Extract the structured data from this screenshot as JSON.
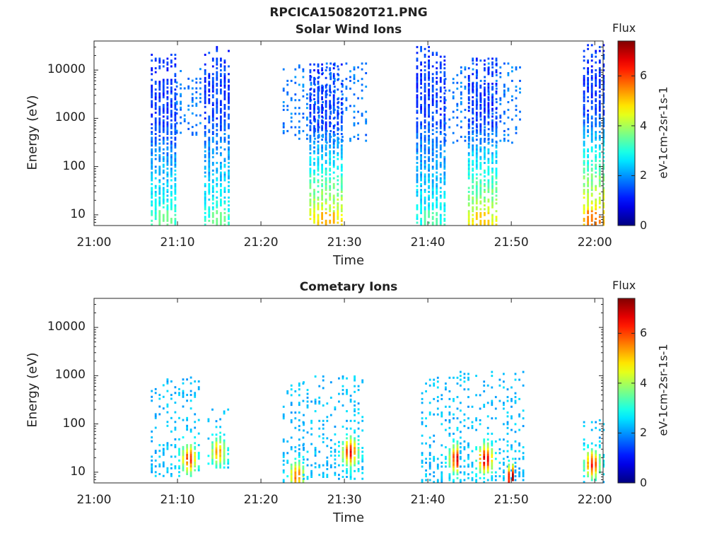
{
  "figure": {
    "title_line1": "RPCICA150820T21.PNG",
    "title_line2": "Solar Wind Ions"
  },
  "chart_data": [
    {
      "type": "heatmap",
      "title": "Solar Wind Ions",
      "xlabel": "Time",
      "ylabel": "Energy (eV)",
      "xlim": [
        "21:00",
        "22:01"
      ],
      "ylim": [
        6,
        40000
      ],
      "yscale": "log",
      "x_ticks": [
        "21:00",
        "21:10",
        "21:20",
        "21:30",
        "21:40",
        "21:50",
        "22:00"
      ],
      "y_ticks": [
        "10",
        "100",
        "1000",
        "10000"
      ],
      "colorbar": {
        "title": "Flux",
        "label": "eV-1cm-2sr-1s-1",
        "range": [
          0,
          7.4
        ],
        "ticks": [
          "0",
          "2",
          "4",
          "6"
        ],
        "colormap": "jet"
      },
      "bursts": [
        {
          "start_min": 6.8,
          "end_min": 9.8,
          "emax": 20000,
          "emin": 6,
          "peak_flux": 3.2,
          "core_flux": 1.3
        },
        {
          "start_min": 9.8,
          "end_min": 12.8,
          "emax": 11000,
          "emin": 400,
          "peak_flux": 2.0,
          "core_flux": 1.8,
          "sparse": true
        },
        {
          "start_min": 13.2,
          "end_min": 16.2,
          "emax": 30000,
          "emin": 6,
          "peak_flux": 3.2,
          "core_flux": 1.3
        },
        {
          "start_min": 22.6,
          "end_min": 32.5,
          "emax": 14000,
          "emin": 300,
          "peak_flux": 2.0,
          "core_flux": 1.8,
          "sparse": true
        },
        {
          "start_min": 25.8,
          "end_min": 29.8,
          "emax": 13000,
          "emin": 6,
          "peak_flux": 4.8,
          "core_flux": 1.3
        },
        {
          "start_min": 38.6,
          "end_min": 42.0,
          "emax": 30000,
          "emin": 6,
          "peak_flux": 3.0,
          "core_flux": 1.3
        },
        {
          "start_min": 42.0,
          "end_min": 51.0,
          "emax": 14000,
          "emin": 300,
          "peak_flux": 2.0,
          "core_flux": 1.8,
          "sparse": true
        },
        {
          "start_min": 44.8,
          "end_min": 48.2,
          "emax": 18000,
          "emin": 6,
          "peak_flux": 4.6,
          "core_flux": 1.3
        },
        {
          "start_min": 58.6,
          "end_min": 61.0,
          "emax": 38000,
          "emin": 6,
          "peak_flux": 5.2,
          "core_flux": 1.3
        }
      ]
    },
    {
      "type": "heatmap",
      "title": "Cometary Ions",
      "xlabel": "Time",
      "ylabel": "Energy (eV)",
      "xlim": [
        "21:00",
        "22:01"
      ],
      "ylim": [
        6,
        40000
      ],
      "yscale": "log",
      "x_ticks": [
        "21:00",
        "21:10",
        "21:20",
        "21:30",
        "21:40",
        "21:50",
        "22:00"
      ],
      "y_ticks": [
        "10",
        "100",
        "1000",
        "10000"
      ],
      "colorbar": {
        "title": "Flux",
        "label": "eV-1cm-2sr-1s-1",
        "range": [
          0,
          7.4
        ],
        "ticks": [
          "0",
          "2",
          "4",
          "6"
        ],
        "colormap": "jet"
      },
      "bursts": [
        {
          "start_min": 6.8,
          "end_min": 12.8,
          "emax": 900,
          "emin": 8,
          "peak_flux": 6.2,
          "peak_min": 11.3,
          "peak_e": 18
        },
        {
          "start_min": 13.6,
          "end_min": 16.2,
          "emax": 200,
          "emin": 12,
          "peak_flux": 5.4,
          "peak_min": 14.8,
          "peak_e": 25
        },
        {
          "start_min": 22.6,
          "end_min": 25.0,
          "emax": 700,
          "emin": 6,
          "peak_flux": 5.8,
          "peak_min": 24.2,
          "peak_e": 8
        },
        {
          "start_min": 25.0,
          "end_min": 32.5,
          "emax": 1000,
          "emin": 7,
          "peak_flux": 6.6,
          "peak_min": 30.6,
          "peak_e": 25
        },
        {
          "start_min": 39.2,
          "end_min": 43.8,
          "emax": 900,
          "emin": 6,
          "peak_flux": 6.8,
          "peak_min": 43.4,
          "peak_e": 18
        },
        {
          "start_min": 43.8,
          "end_min": 51.5,
          "emax": 1200,
          "emin": 6,
          "peak_flux": 7.0,
          "peak_min": 46.8,
          "peak_e": 18
        },
        {
          "start_min": 49.6,
          "end_min": 50.4,
          "emax": 20,
          "emin": 6,
          "peak_flux": 7.3,
          "peak_min": 50.0,
          "peak_e": 7
        },
        {
          "start_min": 58.6,
          "end_min": 61.0,
          "emax": 120,
          "emin": 6,
          "peak_flux": 6.4,
          "peak_min": 59.6,
          "peak_e": 14
        }
      ]
    }
  ]
}
